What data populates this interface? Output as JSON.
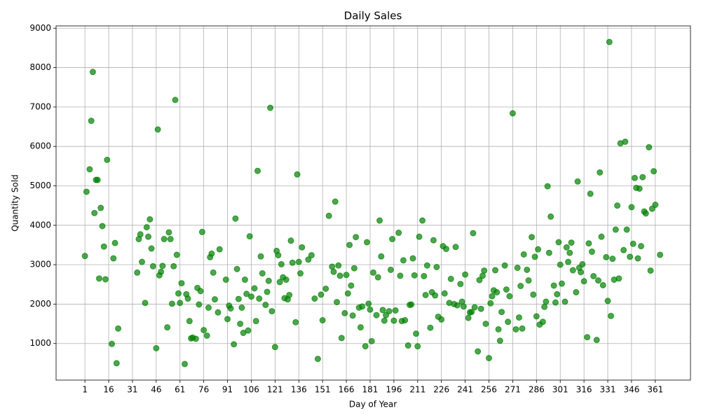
{
  "chart_data": {
    "type": "scatter",
    "title": "Daily Sales",
    "x_label": "Day of Year",
    "y_label": "Quantity Sold",
    "color": "#008000",
    "grid": true,
    "xlim": [
      -17.2,
      383.2
    ],
    "ylim": [
      72,
      9058
    ],
    "xticks": [
      1,
      16,
      31,
      46,
      61,
      76,
      91,
      106,
      121,
      136,
      151,
      166,
      181,
      196,
      211,
      226,
      241,
      256,
      271,
      286,
      301,
      316,
      331,
      346,
      361
    ],
    "yticks": [
      1000,
      2000,
      3000,
      4000,
      5000,
      6000,
      7000,
      8000,
      9000
    ],
    "x": [
      1,
      2,
      4,
      5,
      6,
      7,
      8,
      9,
      10,
      11,
      12,
      13,
      14,
      15,
      18,
      19,
      20,
      21,
      22,
      34,
      35,
      36,
      37,
      39,
      40,
      41,
      42,
      43,
      44,
      46,
      47,
      48,
      49,
      50,
      51,
      53,
      54,
      55,
      56,
      57,
      58,
      59,
      60,
      61,
      62,
      64,
      65,
      66,
      67,
      68,
      69,
      71,
      72,
      73,
      74,
      75,
      76,
      78,
      79,
      80,
      81,
      82,
      83,
      85,
      86,
      90,
      91,
      92,
      93,
      95,
      96,
      97,
      98,
      99,
      100,
      101,
      102,
      103,
      104,
      105,
      106,
      108,
      109,
      110,
      111,
      112,
      113,
      115,
      116,
      117,
      118,
      119,
      121,
      122,
      123,
      124,
      125,
      126,
      127,
      128,
      129,
      130,
      131,
      132,
      134,
      135,
      136,
      137,
      138,
      142,
      144,
      146,
      148,
      150,
      151,
      153,
      155,
      157,
      158,
      159,
      160,
      161,
      162,
      163,
      165,
      166,
      167,
      168,
      169,
      170,
      171,
      172,
      174,
      175,
      176,
      178,
      179,
      180,
      181,
      182,
      183,
      185,
      186,
      187,
      188,
      189,
      190,
      191,
      193,
      194,
      195,
      196,
      197,
      199,
      200,
      201,
      202,
      203,
      205,
      206,
      207,
      208,
      209,
      210,
      211,
      212,
      214,
      215,
      216,
      217,
      219,
      220,
      221,
      222,
      223,
      224,
      226,
      227,
      228,
      229,
      231,
      232,
      234,
      235,
      236,
      238,
      239,
      240,
      241,
      243,
      244,
      245,
      246,
      247,
      249,
      250,
      251,
      252,
      253,
      254,
      256,
      257,
      258,
      259,
      260,
      261,
      262,
      263,
      264,
      266,
      267,
      268,
      269,
      271,
      273,
      274,
      275,
      276,
      277,
      278,
      280,
      281,
      283,
      284,
      285,
      286,
      287,
      288,
      290,
      291,
      292,
      293,
      294,
      295,
      297,
      298,
      299,
      300,
      301,
      302,
      304,
      305,
      306,
      307,
      308,
      309,
      311,
      312,
      313,
      314,
      315,
      316,
      318,
      319,
      320,
      321,
      322,
      324,
      325,
      326,
      327,
      328,
      330,
      331,
      332,
      333,
      334,
      335,
      336,
      337,
      338,
      339,
      341,
      342,
      343,
      345,
      346,
      347,
      348,
      349,
      350,
      351,
      352,
      353,
      354,
      355,
      357,
      358,
      359,
      360,
      361,
      364
    ],
    "values": [
      3220,
      4850,
      5420,
      6650,
      7890,
      4310,
      5150,
      5150,
      2650,
      4440,
      3980,
      3460,
      2630,
      5660,
      990,
      3160,
      3550,
      500,
      1380,
      2800,
      3650,
      3770,
      3070,
      2030,
      3950,
      3710,
      4150,
      3410,
      2960,
      880,
      6430,
      2730,
      2820,
      2970,
      3650,
      1410,
      3820,
      3650,
      2010,
      2960,
      7180,
      3250,
      2270,
      2030,
      2530,
      480,
      2250,
      2140,
      1570,
      1130,
      1150,
      1120,
      2410,
      1990,
      2330,
      3830,
      1340,
      1200,
      1910,
      3190,
      3280,
      2800,
      2120,
      1790,
      3390,
      2620,
      1620,
      1960,
      1890,
      980,
      4170,
      2890,
      2130,
      1500,
      1910,
      1270,
      2620,
      2260,
      1330,
      3720,
      2190,
      2400,
      1570,
      5380,
      2140,
      3210,
      2780,
      1980,
      2310,
      2590,
      6980,
      1820,
      910,
      3350,
      3240,
      2560,
      3010,
      2680,
      2150,
      2620,
      2120,
      2230,
      3610,
      3050,
      1540,
      5290,
      3070,
      2780,
      3440,
      3130,
      3240,
      2140,
      610,
      2240,
      1590,
      2390,
      4240,
      2950,
      2820,
      4600,
      2050,
      2980,
      2720,
      1140,
      1770,
      2740,
      2270,
      3500,
      2470,
      1710,
      2910,
      3700,
      1910,
      1410,
      1940,
      930,
      3570,
      2010,
      1860,
      1060,
      2800,
      1720,
      2680,
      4120,
      3210,
      1850,
      1580,
      1720,
      1820,
      2870,
      3650,
      1580,
      1840,
      3810,
      2720,
      1570,
      3110,
      1590,
      950,
      1980,
      1990,
      3160,
      2730,
      1250,
      930,
      3710,
      4120,
      2710,
      2230,
      2980,
      1400,
      2300,
      3620,
      2220,
      2940,
      1680,
      1610,
      3470,
      2270,
      3400,
      2030,
      2640,
      2000,
      3450,
      1970,
      2510,
      2060,
      1940,
      2750,
      1650,
      1790,
      1800,
      3800,
      1920,
      800,
      2610,
      1880,
      2720,
      2850,
      1500,
      630,
      2020,
      2200,
      2350,
      2860,
      2300,
      1360,
      1070,
      1800,
      2980,
      2370,
      1550,
      2200,
      6840,
      1360,
      2920,
      1660,
      2460,
      1380,
      3260,
      2870,
      2600,
      3700,
      2240,
      3200,
      1690,
      3390,
      1480,
      1550,
      1930,
      2060,
      4990,
      3300,
      4220,
      2470,
      2040,
      2250,
      3570,
      3000,
      2520,
      2060,
      3440,
      3070,
      3300,
      3560,
      2860,
      2300,
      5110,
      2920,
      2810,
      3010,
      2580,
      1160,
      3540,
      4800,
      3330,
      2710,
      1090,
      2600,
      5340,
      3710,
      2480,
      3190,
      2080,
      8650,
      1700,
      3150,
      2620,
      3890,
      4500,
      2650,
      6080,
      3370,
      6120,
      3890,
      3200,
      4460,
      3530,
      5200,
      4950,
      3160,
      4930,
      3470,
      5220,
      4350,
      4300,
      5980,
      2850,
      4420,
      5370,
      4520,
      3250
    ]
  }
}
